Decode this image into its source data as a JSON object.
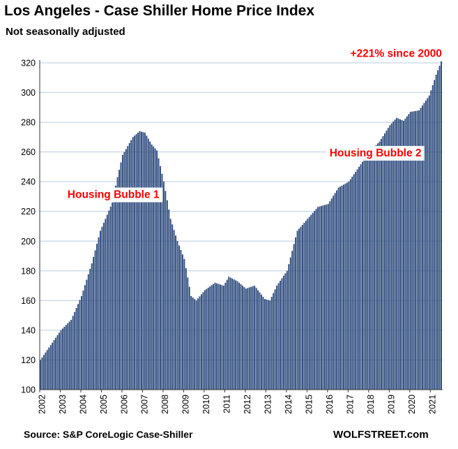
{
  "chart_data": {
    "type": "bar",
    "title": "Los Angeles - Case Shiller Home Price Index",
    "subtitle": "Not seasonally adjusted",
    "xlabel": "",
    "ylabel": "",
    "ylim": [
      100,
      320
    ],
    "yticks": [
      100,
      120,
      140,
      160,
      180,
      200,
      220,
      240,
      260,
      280,
      300,
      320
    ],
    "xticks": [
      "2002",
      "2003",
      "2004",
      "2005",
      "2006",
      "2007",
      "2008",
      "2009",
      "2010",
      "2011",
      "2012",
      "2013",
      "2014",
      "2015",
      "2016",
      "2017",
      "2018",
      "2019",
      "2020",
      "2021"
    ],
    "grid": true,
    "bar_color": "#2c4a7c",
    "annotation_color": "#ff0000",
    "series_anchors": [
      {
        "x": "2002-01",
        "y": 120
      },
      {
        "x": "2003-01",
        "y": 140
      },
      {
        "x": "2003-07",
        "y": 147
      },
      {
        "x": "2004-01",
        "y": 163
      },
      {
        "x": "2004-07",
        "y": 185
      },
      {
        "x": "2004-12",
        "y": 207
      },
      {
        "x": "2005-03",
        "y": 215
      },
      {
        "x": "2005-07",
        "y": 226
      },
      {
        "x": "2005-10",
        "y": 243
      },
      {
        "x": "2006-01",
        "y": 258
      },
      {
        "x": "2006-07",
        "y": 270
      },
      {
        "x": "2006-11",
        "y": 274
      },
      {
        "x": "2007-02",
        "y": 273
      },
      {
        "x": "2007-06",
        "y": 265
      },
      {
        "x": "2007-09",
        "y": 261
      },
      {
        "x": "2008-01",
        "y": 240
      },
      {
        "x": "2008-05",
        "y": 215
      },
      {
        "x": "2008-09",
        "y": 200
      },
      {
        "x": "2009-01",
        "y": 188
      },
      {
        "x": "2009-05",
        "y": 163
      },
      {
        "x": "2009-08",
        "y": 160
      },
      {
        "x": "2010-01",
        "y": 167
      },
      {
        "x": "2010-07",
        "y": 172
      },
      {
        "x": "2010-12",
        "y": 170
      },
      {
        "x": "2011-03",
        "y": 176
      },
      {
        "x": "2011-08",
        "y": 173
      },
      {
        "x": "2012-01",
        "y": 168
      },
      {
        "x": "2012-06",
        "y": 170
      },
      {
        "x": "2012-12",
        "y": 161
      },
      {
        "x": "2013-03",
        "y": 160
      },
      {
        "x": "2013-07",
        "y": 170
      },
      {
        "x": "2014-01",
        "y": 180
      },
      {
        "x": "2014-07",
        "y": 207
      },
      {
        "x": "2015-01",
        "y": 215
      },
      {
        "x": "2015-07",
        "y": 223
      },
      {
        "x": "2016-01",
        "y": 225
      },
      {
        "x": "2016-07",
        "y": 236
      },
      {
        "x": "2017-01",
        "y": 240
      },
      {
        "x": "2017-07",
        "y": 250
      },
      {
        "x": "2018-01",
        "y": 260
      },
      {
        "x": "2018-07",
        "y": 267
      },
      {
        "x": "2019-01",
        "y": 278
      },
      {
        "x": "2019-05",
        "y": 283
      },
      {
        "x": "2019-09",
        "y": 281
      },
      {
        "x": "2020-01",
        "y": 287
      },
      {
        "x": "2020-06",
        "y": 288
      },
      {
        "x": "2020-12",
        "y": 298
      },
      {
        "x": "2021-04",
        "y": 312
      },
      {
        "x": "2021-07",
        "y": 321
      }
    ],
    "annotations": [
      {
        "text": "+221% since 2000",
        "x": "2019-05",
        "y": 324
      },
      {
        "text": "Housing Bubble 1",
        "x": "2005-08",
        "y": 229
      },
      {
        "text": "Housing Bubble 2",
        "x": "2018-05",
        "y": 257
      }
    ],
    "source": "Source: S&P CoreLogic Case-Shiller",
    "brand": "WOLFSTREET.com"
  }
}
